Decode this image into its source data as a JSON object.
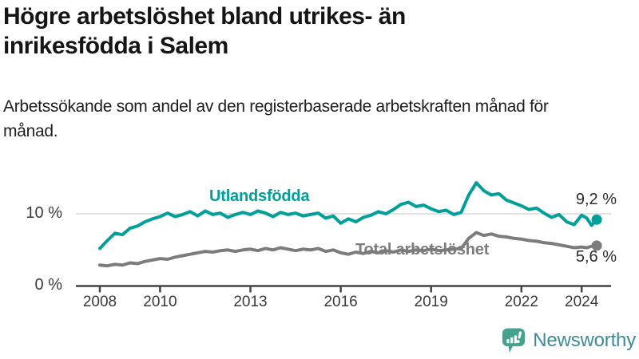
{
  "header": {
    "title": "Högre arbetslöshet bland utrikes- än inrikesfödda i Salem",
    "subtitle": "Arbetssökande som andel av den registerbaserade arbetskraften månad för månad."
  },
  "chart_data": {
    "type": "line",
    "title": "Högre arbetslöshet bland utrikes- än inrikesfödda i Salem",
    "subtitle": "Arbetssökande som andel av den registerbaserade arbetskraften månad för månad.",
    "unit": "%",
    "x_axis": {
      "ticks": [
        "2008",
        "2010",
        "2013",
        "2016",
        "2019",
        "2022",
        "2024"
      ],
      "range": [
        2008,
        2024.6
      ],
      "grid": false
    },
    "y_axis": {
      "ticks": [
        {
          "value": 0,
          "label": "0 %"
        },
        {
          "value": 10,
          "label": "10 %"
        }
      ],
      "range": [
        0,
        15
      ],
      "grid": "single gridline at 10 %"
    },
    "legend_position": "inline labels on lines",
    "series": [
      {
        "name": "Utlandsfödda",
        "color": "#00a09a",
        "end_value": 9.2,
        "end_label": "9,2 %",
        "points": [
          [
            2008.0,
            5.2
          ],
          [
            2008.25,
            6.3
          ],
          [
            2008.5,
            7.3
          ],
          [
            2008.75,
            7.1
          ],
          [
            2009.0,
            8.0
          ],
          [
            2009.25,
            8.3
          ],
          [
            2009.5,
            8.9
          ],
          [
            2009.75,
            9.3
          ],
          [
            2010.0,
            9.6
          ],
          [
            2010.25,
            10.1
          ],
          [
            2010.5,
            9.6
          ],
          [
            2010.75,
            9.9
          ],
          [
            2011.0,
            10.3
          ],
          [
            2011.25,
            9.7
          ],
          [
            2011.5,
            10.4
          ],
          [
            2011.75,
            9.9
          ],
          [
            2012.0,
            10.1
          ],
          [
            2012.25,
            9.5
          ],
          [
            2012.5,
            9.9
          ],
          [
            2012.75,
            10.2
          ],
          [
            2013.0,
            9.9
          ],
          [
            2013.25,
            10.4
          ],
          [
            2013.5,
            10.1
          ],
          [
            2013.75,
            9.6
          ],
          [
            2014.0,
            10.2
          ],
          [
            2014.25,
            9.9
          ],
          [
            2014.5,
            10.1
          ],
          [
            2014.75,
            9.7
          ],
          [
            2015.0,
            9.9
          ],
          [
            2015.25,
            10.1
          ],
          [
            2015.5,
            9.4
          ],
          [
            2015.75,
            9.7
          ],
          [
            2016.0,
            8.7
          ],
          [
            2016.25,
            9.3
          ],
          [
            2016.5,
            8.9
          ],
          [
            2016.75,
            9.5
          ],
          [
            2017.0,
            9.8
          ],
          [
            2017.25,
            10.3
          ],
          [
            2017.5,
            10.0
          ],
          [
            2017.75,
            10.6
          ],
          [
            2018.0,
            11.3
          ],
          [
            2018.25,
            11.6
          ],
          [
            2018.5,
            11.0
          ],
          [
            2018.75,
            11.2
          ],
          [
            2019.0,
            10.7
          ],
          [
            2019.25,
            10.3
          ],
          [
            2019.5,
            10.5
          ],
          [
            2019.75,
            9.9
          ],
          [
            2020.0,
            10.2
          ],
          [
            2020.25,
            12.6
          ],
          [
            2020.5,
            14.3
          ],
          [
            2020.75,
            13.2
          ],
          [
            2021.0,
            12.6
          ],
          [
            2021.25,
            12.8
          ],
          [
            2021.5,
            11.9
          ],
          [
            2021.75,
            11.5
          ],
          [
            2022.0,
            11.1
          ],
          [
            2022.25,
            10.6
          ],
          [
            2022.5,
            10.8
          ],
          [
            2022.75,
            10.1
          ],
          [
            2023.0,
            9.5
          ],
          [
            2023.25,
            9.9
          ],
          [
            2023.5,
            8.9
          ],
          [
            2023.75,
            8.5
          ],
          [
            2024.0,
            9.8
          ],
          [
            2024.17,
            9.4
          ],
          [
            2024.33,
            8.4
          ],
          [
            2024.5,
            9.2
          ]
        ]
      },
      {
        "name": "Total arbetslöshet",
        "color": "#7c7c7c",
        "end_value": 5.6,
        "end_label": "5,6 %",
        "points": [
          [
            2008.0,
            2.9
          ],
          [
            2008.25,
            2.8
          ],
          [
            2008.5,
            3.0
          ],
          [
            2008.75,
            2.9
          ],
          [
            2009.0,
            3.2
          ],
          [
            2009.25,
            3.1
          ],
          [
            2009.5,
            3.4
          ],
          [
            2009.75,
            3.6
          ],
          [
            2010.0,
            3.8
          ],
          [
            2010.25,
            3.7
          ],
          [
            2010.5,
            4.0
          ],
          [
            2010.75,
            4.2
          ],
          [
            2011.0,
            4.4
          ],
          [
            2011.25,
            4.6
          ],
          [
            2011.5,
            4.8
          ],
          [
            2011.75,
            4.7
          ],
          [
            2012.0,
            4.9
          ],
          [
            2012.25,
            5.0
          ],
          [
            2012.5,
            4.8
          ],
          [
            2012.75,
            5.0
          ],
          [
            2013.0,
            5.1
          ],
          [
            2013.25,
            4.9
          ],
          [
            2013.5,
            5.2
          ],
          [
            2013.75,
            5.0
          ],
          [
            2014.0,
            5.3
          ],
          [
            2014.25,
            5.1
          ],
          [
            2014.5,
            4.9
          ],
          [
            2014.75,
            5.1
          ],
          [
            2015.0,
            5.0
          ],
          [
            2015.25,
            5.2
          ],
          [
            2015.5,
            4.8
          ],
          [
            2015.75,
            5.0
          ],
          [
            2016.0,
            4.6
          ],
          [
            2016.25,
            4.4
          ],
          [
            2016.5,
            4.7
          ],
          [
            2016.75,
            4.5
          ],
          [
            2017.0,
            4.8
          ],
          [
            2017.25,
            4.6
          ],
          [
            2017.5,
            4.9
          ],
          [
            2017.75,
            4.7
          ],
          [
            2018.0,
            5.0
          ],
          [
            2018.25,
            4.8
          ],
          [
            2018.5,
            5.0
          ],
          [
            2018.75,
            4.9
          ],
          [
            2019.0,
            5.1
          ],
          [
            2019.25,
            4.9
          ],
          [
            2019.5,
            5.0
          ],
          [
            2019.75,
            5.1
          ],
          [
            2020.0,
            5.2
          ],
          [
            2020.25,
            6.6
          ],
          [
            2020.5,
            7.4
          ],
          [
            2020.75,
            7.0
          ],
          [
            2021.0,
            7.2
          ],
          [
            2021.25,
            6.9
          ],
          [
            2021.5,
            6.8
          ],
          [
            2021.75,
            6.6
          ],
          [
            2022.0,
            6.5
          ],
          [
            2022.25,
            6.3
          ],
          [
            2022.5,
            6.2
          ],
          [
            2022.75,
            6.0
          ],
          [
            2023.0,
            5.9
          ],
          [
            2023.25,
            5.7
          ],
          [
            2023.5,
            5.5
          ],
          [
            2023.75,
            5.3
          ],
          [
            2024.0,
            5.4
          ],
          [
            2024.17,
            5.3
          ],
          [
            2024.33,
            5.5
          ],
          [
            2024.5,
            5.6
          ]
        ]
      }
    ],
    "colors": {
      "gridline": "#d9d9d9",
      "axis": "#444444",
      "tick_text": "#3a3a3a"
    }
  },
  "footer": {
    "brand": "Newsworthy",
    "logo_icon": "bar-chart-speech-bubble-icon",
    "brand_text_color": "#3d8b99",
    "icon_color": "#45a28f"
  }
}
